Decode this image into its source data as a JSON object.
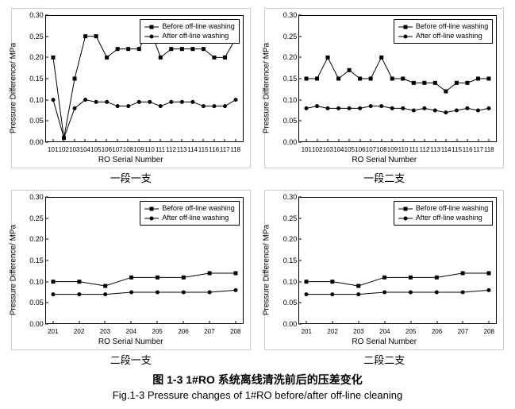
{
  "global": {
    "ylabel": "Pressure Difference/ MPa",
    "xlabel": "RO Serial Number",
    "legend_before": "Before off-line washing",
    "legend_after": "After off-line washing",
    "ylim": [
      0.0,
      0.3
    ],
    "yticks": [
      0.0,
      0.05,
      0.1,
      0.15,
      0.2,
      0.25,
      0.3
    ],
    "background_color": "#ffffff",
    "axis_color": "#000000",
    "marker_color": "#000000",
    "marker_size_sq": 5,
    "marker_size_ci": 4,
    "line_width": 1,
    "label_fontsize": 10,
    "tick_fontsize": 9
  },
  "panels": [
    {
      "id": "p1",
      "subtitle": "一段一支",
      "xcats": [
        "101",
        "102",
        "103",
        "104",
        "105",
        "106",
        "107",
        "108",
        "109",
        "110",
        "111",
        "112",
        "113",
        "114",
        "115",
        "116",
        "117",
        "118"
      ],
      "before": [
        0.2,
        0.01,
        0.15,
        0.25,
        0.25,
        0.2,
        0.22,
        0.22,
        0.22,
        0.27,
        0.2,
        0.22,
        0.22,
        0.22,
        0.22,
        0.2,
        0.2,
        0.245
      ],
      "after": [
        0.1,
        0.01,
        0.08,
        0.1,
        0.095,
        0.095,
        0.085,
        0.085,
        0.095,
        0.095,
        0.085,
        0.095,
        0.095,
        0.095,
        0.085,
        0.085,
        0.085,
        0.1
      ]
    },
    {
      "id": "p2",
      "subtitle": "一段二支",
      "xcats": [
        "101",
        "102",
        "103",
        "104",
        "105",
        "106",
        "107",
        "108",
        "109",
        "110",
        "111",
        "112",
        "113",
        "114",
        "115",
        "116",
        "117",
        "118"
      ],
      "before": [
        0.15,
        0.15,
        0.2,
        0.15,
        0.17,
        0.15,
        0.15,
        0.2,
        0.15,
        0.15,
        0.14,
        0.14,
        0.14,
        0.12,
        0.14,
        0.14,
        0.15,
        0.15
      ],
      "after": [
        0.08,
        0.085,
        0.08,
        0.08,
        0.08,
        0.08,
        0.085,
        0.085,
        0.08,
        0.08,
        0.075,
        0.08,
        0.075,
        0.07,
        0.075,
        0.08,
        0.075,
        0.08
      ]
    },
    {
      "id": "p3",
      "subtitle": "二段一支",
      "xcats": [
        "201",
        "202",
        "203",
        "204",
        "205",
        "206",
        "207",
        "208"
      ],
      "before": [
        0.1,
        0.1,
        0.09,
        0.11,
        0.11,
        0.11,
        0.12,
        0.12
      ],
      "after": [
        0.07,
        0.07,
        0.07,
        0.075,
        0.075,
        0.075,
        0.075,
        0.08
      ]
    },
    {
      "id": "p4",
      "subtitle": "二段二支",
      "xcats": [
        "201",
        "202",
        "203",
        "204",
        "205",
        "206",
        "207",
        "208"
      ],
      "before": [
        0.1,
        0.1,
        0.09,
        0.11,
        0.11,
        0.11,
        0.12,
        0.12
      ],
      "after": [
        0.07,
        0.07,
        0.07,
        0.075,
        0.075,
        0.075,
        0.075,
        0.08
      ]
    }
  ],
  "caption_cn": "图 1-3  1#RO 系统离线清洗前后的压差变化",
  "caption_en": "Fig.1-3 Pressure changes of 1#RO before/after off-line cleaning"
}
